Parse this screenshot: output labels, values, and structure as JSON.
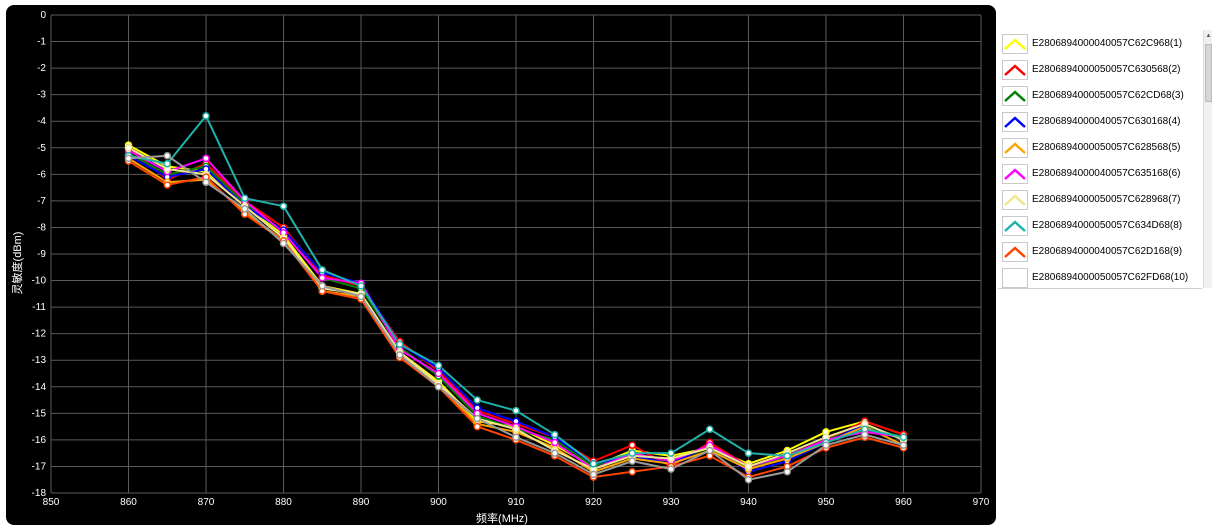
{
  "chart_data": {
    "type": "line",
    "xlabel": "频率(MHz)",
    "ylabel": "灵敏度(dBm)",
    "xlim": [
      850,
      970
    ],
    "ylim": [
      -18,
      0
    ],
    "x_ticks": [
      "850",
      "860",
      "870",
      "880",
      "890",
      "900",
      "910",
      "920",
      "930",
      "940",
      "950",
      "960",
      "970"
    ],
    "y_ticks": [
      "0",
      "-1",
      "-2",
      "-3",
      "-4",
      "-5",
      "-6",
      "-7",
      "-8",
      "-9",
      "-10",
      "-11",
      "-12",
      "-13",
      "-14",
      "-15",
      "-16",
      "-17",
      "-18"
    ],
    "x": [
      860,
      865,
      870,
      875,
      880,
      885,
      890,
      895,
      900,
      905,
      910,
      915,
      920,
      925,
      930,
      935,
      940,
      945,
      950,
      955,
      960
    ],
    "grid": true,
    "legend_position": "right",
    "series": [
      {
        "name": "E2806894000040057C62C968(1)",
        "color": "#ffff00",
        "values": [
          -4.9,
          -5.7,
          -5.9,
          -7.1,
          -8.3,
          -10.2,
          -10.5,
          -12.7,
          -13.8,
          -15.3,
          -15.5,
          -16.2,
          -17.0,
          -16.4,
          -16.6,
          -16.3,
          -16.9,
          -16.4,
          -15.7,
          -15.3,
          -15.8
        ]
      },
      {
        "name": "E2806894000050057C630568(2)",
        "color": "#ff0000",
        "values": [
          -5.0,
          -6.2,
          -5.6,
          -7.0,
          -8.0,
          -9.8,
          -10.2,
          -12.3,
          -13.4,
          -14.9,
          -15.4,
          -15.9,
          -16.8,
          -16.2,
          -17.0,
          -16.1,
          -17.0,
          -16.6,
          -16.0,
          -15.3,
          -15.8
        ]
      },
      {
        "name": "E2806894000050057C62CD68(3)",
        "color": "#008000",
        "values": [
          -5.2,
          -6.0,
          -5.7,
          -7.1,
          -8.2,
          -9.9,
          -10.3,
          -12.5,
          -13.6,
          -15.1,
          -15.6,
          -16.0,
          -17.0,
          -16.5,
          -16.8,
          -16.3,
          -17.1,
          -16.6,
          -16.0,
          -15.5,
          -15.9
        ]
      },
      {
        "name": "E2806894000040057C630168(4)",
        "color": "#0000ff",
        "values": [
          -5.3,
          -6.1,
          -5.8,
          -7.2,
          -8.1,
          -9.7,
          -10.1,
          -12.4,
          -13.3,
          -14.8,
          -15.3,
          -15.9,
          -16.9,
          -16.6,
          -16.9,
          -16.2,
          -17.2,
          -16.8,
          -16.1,
          -15.4,
          -16.0
        ]
      },
      {
        "name": "E2806894000050057C628568(5)",
        "color": "#ffa500",
        "values": [
          -5.4,
          -6.3,
          -6.2,
          -7.4,
          -8.5,
          -10.4,
          -10.6,
          -12.8,
          -13.9,
          -15.4,
          -15.7,
          -16.3,
          -17.2,
          -16.7,
          -16.9,
          -16.4,
          -17.1,
          -16.7,
          -16.1,
          -15.5,
          -16.2
        ]
      },
      {
        "name": "E2806894000040057C635168(6)",
        "color": "#ff00ff",
        "values": [
          -5.1,
          -5.9,
          -5.4,
          -7.0,
          -8.2,
          -9.9,
          -10.1,
          -12.6,
          -13.5,
          -15.0,
          -15.5,
          -16.1,
          -17.1,
          -16.5,
          -16.8,
          -16.2,
          -17.0,
          -16.6,
          -16.0,
          -15.7,
          -15.9
        ]
      },
      {
        "name": "E2806894000050057C628968(7)",
        "color": "#f0e68c",
        "values": [
          -5.0,
          -5.8,
          -6.0,
          -7.2,
          -8.4,
          -10.3,
          -10.5,
          -12.7,
          -13.9,
          -15.2,
          -15.6,
          -16.4,
          -17.1,
          -16.6,
          -16.7,
          -16.3,
          -17.0,
          -16.5,
          -15.9,
          -15.4,
          -16.0
        ]
      },
      {
        "name": "E2806894000050057C634D68(8)",
        "color": "#20b2aa",
        "values": [
          -5.3,
          -5.6,
          -3.8,
          -6.9,
          -7.2,
          -9.6,
          -10.2,
          -12.4,
          -13.2,
          -14.5,
          -14.9,
          -15.8,
          -16.9,
          -16.5,
          -16.5,
          -15.6,
          -16.5,
          -16.6,
          -16.1,
          -15.6,
          -15.9
        ]
      },
      {
        "name": "E2806894000040057C62D168(9)",
        "color": "#ff4500",
        "values": [
          -5.5,
          -6.4,
          -6.1,
          -7.5,
          -8.5,
          -10.4,
          -10.7,
          -12.9,
          -14.0,
          -15.5,
          -16.0,
          -16.6,
          -17.4,
          -17.2,
          -17.0,
          -16.6,
          -17.4,
          -17.0,
          -16.3,
          -15.9,
          -16.3
        ]
      },
      {
        "name": "E2806894000050057C62FD68(10)",
        "color": "#999999",
        "values": [
          -5.4,
          -5.3,
          -6.3,
          -7.3,
          -8.6,
          -10.2,
          -10.6,
          -12.8,
          -14.0,
          -15.2,
          -15.9,
          -16.5,
          -17.3,
          -16.8,
          -17.1,
          -16.4,
          -17.5,
          -17.2,
          -16.2,
          -15.8,
          -16.2
        ]
      }
    ]
  }
}
